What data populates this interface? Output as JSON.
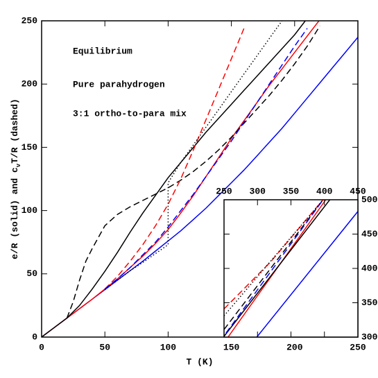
{
  "chart_data": [
    {
      "type": "line",
      "xlabel": "T (K)",
      "ylabel": [
        "e/R (solid) and c",
        "v",
        "T/R (dashed)"
      ],
      "xlim": [
        0,
        250
      ],
      "ylim": [
        0,
        250
      ],
      "xticks": [
        0,
        50,
        100,
        150,
        200,
        250
      ],
      "yticks": [
        0,
        50,
        100,
        150,
        200,
        250
      ],
      "annotations": [
        {
          "text": "Equilibrium",
          "color": "#000000"
        },
        {
          "text": "Pure parahydrogen",
          "color": "#ff0000"
        },
        {
          "text": "3:1 ortho-to-para mix",
          "color": "#0000ff"
        }
      ],
      "series": [
        {
          "color": "#0000ff",
          "style": "solid",
          "x": [
            0,
            10,
            20,
            30,
            40,
            50,
            60,
            70,
            80,
            90,
            100,
            110,
            120,
            130,
            140,
            150,
            160,
            170,
            180,
            190,
            200,
            210,
            220,
            230,
            240,
            250
          ],
          "values": [
            0,
            7.5,
            15,
            22.5,
            30,
            37.5,
            45,
            52.5,
            60,
            68,
            76,
            84,
            93,
            102,
            112,
            122,
            132,
            143,
            154,
            165,
            177,
            189,
            201,
            213,
            225,
            237
          ]
        },
        {
          "color": "#ff0000",
          "style": "solid",
          "x": [
            0,
            10,
            20,
            30,
            40,
            50,
            60,
            70,
            80,
            90,
            100,
            110,
            120,
            130,
            140,
            150,
            160,
            170,
            180,
            190,
            200,
            210,
            220
          ],
          "values": [
            0,
            7.5,
            15,
            22.5,
            30,
            38,
            46,
            55,
            64,
            74,
            85,
            98,
            112,
            127,
            142,
            157,
            171,
            185,
            199,
            212,
            225,
            238,
            251
          ]
        },
        {
          "color": "#000000",
          "style": "solid",
          "x": [
            0,
            10,
            20,
            30,
            40,
            50,
            60,
            70,
            80,
            90,
            100,
            110,
            120,
            130,
            140,
            150,
            160,
            170,
            180,
            190,
            200,
            210
          ],
          "values": [
            0,
            7.5,
            15,
            25,
            38,
            52,
            67,
            83,
            98,
            112,
            126,
            138,
            150,
            162,
            173,
            184,
            195,
            206,
            217,
            228,
            239,
            252
          ]
        },
        {
          "color": "#000000",
          "style": "dashed",
          "x": [
            20,
            25,
            30,
            35,
            40,
            50,
            60,
            70,
            80,
            90,
            100,
            110,
            120,
            130,
            140,
            150,
            160,
            170,
            180,
            190,
            200,
            210,
            220
          ],
          "values": [
            15,
            28,
            45,
            60,
            70,
            88,
            97,
            103,
            108,
            113,
            118,
            124,
            131,
            139,
            148,
            158,
            169,
            180,
            191,
            203,
            216,
            230,
            246
          ]
        },
        {
          "color": "#ff0000",
          "style": "dashed",
          "x": [
            50,
            60,
            70,
            80,
            90,
            100,
            110,
            120,
            130,
            140,
            150,
            160
          ],
          "values": [
            38,
            48,
            60,
            73,
            88,
            105,
            125,
            148,
            172,
            196,
            220,
            244
          ]
        },
        {
          "color": "#0000ff",
          "style": "dashed",
          "x": [
            50,
            60,
            70,
            80,
            90,
            100,
            110,
            120,
            130,
            140,
            150,
            160,
            170,
            180,
            190,
            200,
            210
          ],
          "values": [
            38,
            46,
            55,
            65,
            75,
            87,
            100,
            113,
            127,
            141,
            155,
            170,
            185,
            200,
            215,
            230,
            244
          ]
        },
        {
          "color": "#000000",
          "style": "dotted",
          "x": [
            50,
            60,
            70,
            80,
            90,
            100,
            100,
            110,
            120,
            130,
            140,
            150,
            160,
            170,
            180,
            190
          ],
          "values": [
            37.5,
            45,
            52.5,
            59,
            66,
            73,
            122,
            138,
            152,
            166,
            180,
            194,
            208,
            222,
            236,
            250
          ]
        }
      ]
    },
    {
      "type": "line",
      "xlim": [
        250,
        450
      ],
      "ylim": [
        300,
        500
      ],
      "xticks": [
        250,
        300,
        350,
        400,
        450
      ],
      "yticks": [
        300,
        350,
        400,
        450,
        500
      ],
      "series": [
        {
          "color": "#0000ff",
          "style": "solid",
          "x": [
            299,
            450
          ],
          "values": [
            300,
            483
          ]
        },
        {
          "color": "#ff0000",
          "style": "solid",
          "x": [
            256,
            402
          ],
          "values": [
            300,
            500
          ]
        },
        {
          "color": "#000000",
          "style": "solid",
          "x": [
            250,
            408
          ],
          "values": [
            301,
            500
          ]
        },
        {
          "color": "#000000",
          "style": "dashed",
          "x": [
            250,
            398
          ],
          "values": [
            311,
            500
          ]
        },
        {
          "color": "#ff0000",
          "style": "dashed",
          "x": [
            250,
            320,
            398
          ],
          "values": [
            341,
            410,
            500
          ]
        },
        {
          "color": "#0000ff",
          "style": "dashed",
          "x": [
            253,
            398
          ],
          "values": [
            306,
            500
          ]
        },
        {
          "color": "#000000",
          "style": "dotted",
          "x": [
            250,
            398
          ],
          "values": [
            331,
            500
          ]
        }
      ]
    }
  ]
}
